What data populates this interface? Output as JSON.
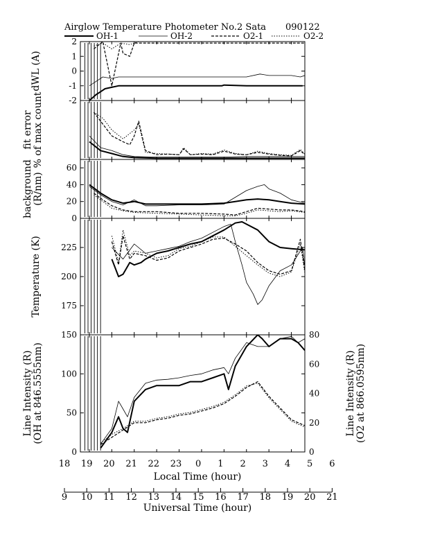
{
  "header": {
    "title": "Airglow Temperature Photometer No.2  Sata",
    "date": "090122"
  },
  "legend": [
    {
      "label": "OH-1",
      "style": "thick"
    },
    {
      "label": "OH-2",
      "style": "thin"
    },
    {
      "label": "O2-1",
      "style": "dash"
    },
    {
      "label": "O2-2",
      "style": "dot"
    }
  ],
  "axes": {
    "local_time_label": "Local Time (hour)",
    "local_time_ticks": [
      "18",
      "19",
      "20",
      "21",
      "22",
      "23",
      "0",
      "1",
      "2",
      "3",
      "4",
      "5",
      "6"
    ],
    "universal_time_label": "Universal Time (hour)",
    "universal_time_ticks": [
      "9",
      "10",
      "11",
      "12",
      "13",
      "14",
      "15",
      "16",
      "17",
      "18",
      "19",
      "20",
      "21"
    ],
    "line_intensity_right_label_1": "Line Intensity (R)",
    "line_intensity_right_label_2": "(O2 at 866.0595nm)"
  },
  "chart_data": [
    {
      "type": "line",
      "panel": "dWL",
      "ylabel": "dWL (A)",
      "ylim": [
        -2,
        2
      ],
      "yticks": [
        "2",
        "1",
        "0",
        "-1",
        "-2"
      ],
      "series": [
        {
          "name": "OH-1",
          "style": "thick",
          "x": [
            19.0,
            19.3,
            19.5,
            19.7,
            20.0,
            20.3,
            21.0,
            22.0,
            23.0,
            0.0,
            0.9,
            1.0,
            2.0,
            3.0,
            4.0,
            4.5
          ],
          "y": [
            -2.0,
            -1.6,
            -1.4,
            -1.2,
            -1.1,
            -1.0,
            -1.0,
            -1.0,
            -1.0,
            -1.0,
            -1.0,
            -0.95,
            -1.0,
            -1.0,
            -1.0,
            -1.0
          ]
        },
        {
          "name": "OH-2",
          "style": "thin",
          "x": [
            19.0,
            19.4,
            19.6,
            20.0,
            20.3,
            21.0,
            22.0,
            23.0,
            0.0,
            1.0,
            2.0,
            2.6,
            3.0,
            4.0,
            4.4,
            4.6
          ],
          "y": [
            -1.0,
            -0.6,
            -0.4,
            -0.5,
            -0.4,
            -0.4,
            -0.4,
            -0.4,
            -0.4,
            -0.4,
            -0.4,
            -0.2,
            -0.3,
            -0.3,
            -0.4,
            -0.3
          ]
        },
        {
          "name": "O2-1",
          "style": "dash",
          "x": [
            19.2,
            19.6,
            20.0,
            20.4,
            20.5,
            20.8,
            21.0,
            21.2,
            22.0,
            23.0,
            0.0,
            1.0,
            2.0,
            3.0,
            4.0,
            4.6
          ],
          "y": [
            1.5,
            2.0,
            -1.0,
            1.9,
            1.2,
            1.0,
            1.9,
            1.9,
            1.9,
            1.9,
            1.9,
            1.9,
            1.9,
            1.9,
            1.9,
            1.9
          ]
        },
        {
          "name": "O2-2",
          "style": "dot",
          "x": [
            19.2,
            19.6,
            20.0,
            20.4,
            20.8,
            21.2,
            22.0,
            23.0,
            0.0,
            1.0,
            2.0,
            3.0,
            4.0,
            4.6
          ],
          "y": [
            1.7,
            1.9,
            1.5,
            1.9,
            1.8,
            2.0,
            2.0,
            2.0,
            2.0,
            2.0,
            2.0,
            2.0,
            2.0,
            2.0
          ]
        }
      ]
    },
    {
      "type": "line",
      "panel": "fit error",
      "ylabel": "fit error",
      "ylabel2": "% of max count",
      "ylim": [
        0,
        10
      ],
      "series": [
        {
          "name": "OH-1",
          "style": "thick",
          "x": [
            19.0,
            19.5,
            20.0,
            20.5,
            21.0,
            22.0,
            23.0,
            0.0,
            1.0,
            2.0,
            3.0,
            4.0,
            4.6
          ],
          "y": [
            3.0,
            1.5,
            1.0,
            0.5,
            0.3,
            0.2,
            0.2,
            0.2,
            0.2,
            0.2,
            0.2,
            0.2,
            0.2
          ]
        },
        {
          "name": "OH-2",
          "style": "thin",
          "x": [
            19.0,
            19.5,
            20.0,
            20.5,
            21.0,
            22.0,
            23.0,
            0.0,
            1.0,
            2.0,
            3.0,
            4.0,
            4.6
          ],
          "y": [
            4.0,
            2.0,
            1.5,
            0.8,
            0.5,
            0.4,
            0.4,
            0.4,
            0.4,
            0.5,
            0.5,
            0.5,
            0.5
          ]
        },
        {
          "name": "O2-1",
          "style": "dash",
          "x": [
            19.2,
            19.6,
            20.0,
            20.5,
            20.8,
            21.0,
            21.2,
            21.5,
            22.0,
            22.5,
            23.0,
            23.2,
            23.5,
            0.0,
            0.5,
            1.0,
            1.5,
            2.0,
            2.5,
            3.0,
            3.5,
            4.0,
            4.4,
            4.6
          ],
          "y": [
            8.0,
            6.0,
            4.0,
            3.0,
            2.5,
            4.0,
            6.5,
            1.5,
            0.8,
            0.9,
            0.8,
            1.8,
            0.8,
            0.9,
            0.8,
            1.4,
            0.9,
            0.8,
            1.2,
            0.9,
            0.7,
            0.6,
            1.5,
            0.8
          ]
        },
        {
          "name": "O2-2",
          "style": "dot",
          "x": [
            19.2,
            19.6,
            20.0,
            20.5,
            21.0,
            21.2,
            21.5,
            22.0,
            22.5,
            23.0,
            23.2,
            23.5,
            0.0,
            0.5,
            1.0,
            1.5,
            2.0,
            2.5,
            3.0,
            3.5,
            4.0,
            4.4,
            4.6
          ],
          "y": [
            8.0,
            7.0,
            5.0,
            3.5,
            5.0,
            6.0,
            1.2,
            1.0,
            0.9,
            0.8,
            2.0,
            0.8,
            1.0,
            0.9,
            1.6,
            1.0,
            0.8,
            1.4,
            1.0,
            0.8,
            0.7,
            1.7,
            0.9
          ]
        }
      ]
    },
    {
      "type": "line",
      "panel": "background",
      "ylabel": "background",
      "ylabel2": "(R/nm)",
      "ylim": [
        0,
        70
      ],
      "yticks": [
        "60",
        "40",
        "20",
        "0"
      ],
      "series": [
        {
          "name": "OH-1",
          "style": "thick",
          "x": [
            19.0,
            19.5,
            20.0,
            20.5,
            21.0,
            21.5,
            22.0,
            23.0,
            0.0,
            1.0,
            1.5,
            2.0,
            2.5,
            3.0,
            3.5,
            4.0,
            4.6
          ],
          "y": [
            40,
            30,
            22,
            18,
            20,
            17,
            17,
            17,
            17,
            18,
            20,
            22,
            23,
            22,
            20,
            18,
            17
          ]
        },
        {
          "name": "OH-2",
          "style": "thin",
          "x": [
            19.0,
            19.5,
            20.0,
            20.5,
            21.0,
            21.5,
            22.0,
            23.0,
            0.0,
            1.0,
            1.5,
            2.0,
            2.5,
            2.8,
            3.0,
            3.5,
            4.0,
            4.6
          ],
          "y": [
            38,
            28,
            20,
            16,
            22,
            15,
            15,
            16,
            16,
            17,
            25,
            33,
            38,
            40,
            35,
            30,
            22,
            18
          ]
        },
        {
          "name": "O2-1",
          "style": "dash",
          "x": [
            19.2,
            19.6,
            20.0,
            20.5,
            21.0,
            22.0,
            23.0,
            0.0,
            1.0,
            1.5,
            2.0,
            2.5,
            3.0,
            3.5,
            4.0,
            4.6
          ],
          "y": [
            30,
            22,
            15,
            10,
            8,
            8,
            6,
            6,
            5,
            4,
            8,
            12,
            11,
            10,
            10,
            8
          ]
        },
        {
          "name": "O2-2",
          "style": "dot",
          "x": [
            19.2,
            19.6,
            20.0,
            20.5,
            21.0,
            22.0,
            23.0,
            0.0,
            1.0,
            1.5,
            2.0,
            2.5,
            3.0,
            3.5,
            4.0,
            4.6
          ],
          "y": [
            28,
            20,
            12,
            9,
            7,
            6,
            5,
            4,
            3,
            3,
            6,
            10,
            9,
            8,
            9,
            7
          ]
        }
      ]
    },
    {
      "type": "line",
      "panel": "Temperature",
      "ylabel": "Temperature (K)",
      "ylim": [
        150,
        250
      ],
      "yticks": [
        "225",
        "200",
        "175"
      ],
      "series": [
        {
          "name": "OH-1",
          "style": "thick",
          "x": [
            20.0,
            20.3,
            20.5,
            20.8,
            21.0,
            21.3,
            21.5,
            22.0,
            22.5,
            23.0,
            23.5,
            0.0,
            0.5,
            1.0,
            1.5,
            1.8,
            2.0,
            2.5,
            3.0,
            3.5,
            4.0,
            4.6
          ],
          "y": [
            215,
            200,
            202,
            212,
            210,
            212,
            215,
            220,
            222,
            225,
            228,
            230,
            235,
            240,
            246,
            247,
            245,
            240,
            230,
            225,
            224,
            223
          ]
        },
        {
          "name": "OH-2",
          "style": "thin",
          "x": [
            20.0,
            20.5,
            21.0,
            21.5,
            22.0,
            22.5,
            23.0,
            23.5,
            0.0,
            0.5,
            1.0,
            1.3,
            1.5,
            1.8,
            2.0,
            2.3,
            2.5,
            2.7,
            3.0,
            3.5,
            4.0,
            4.5,
            4.6
          ],
          "y": [
            225,
            215,
            228,
            220,
            222,
            224,
            226,
            230,
            233,
            238,
            243,
            245,
            230,
            210,
            195,
            185,
            176,
            180,
            192,
            205,
            210,
            225,
            208
          ]
        },
        {
          "name": "O2-1",
          "style": "dash",
          "x": [
            20.0,
            20.3,
            20.5,
            20.8,
            21.0,
            21.5,
            22.0,
            22.5,
            23.0,
            23.5,
            0.0,
            0.5,
            1.0,
            1.5,
            2.0,
            2.5,
            3.0,
            3.5,
            4.0,
            4.4,
            4.6
          ],
          "y": [
            230,
            210,
            235,
            215,
            220,
            218,
            214,
            216,
            222,
            225,
            228,
            232,
            233,
            228,
            222,
            212,
            205,
            202,
            205,
            232,
            205
          ]
        },
        {
          "name": "O2-2",
          "style": "dot",
          "x": [
            20.0,
            20.3,
            20.5,
            20.8,
            21.0,
            21.5,
            22.0,
            22.5,
            23.0,
            23.5,
            0.0,
            0.5,
            1.0,
            1.5,
            2.0,
            2.5,
            3.0,
            3.5,
            4.0,
            4.4,
            4.6
          ],
          "y": [
            235,
            212,
            240,
            218,
            222,
            220,
            216,
            218,
            224,
            226,
            230,
            234,
            234,
            226,
            218,
            210,
            203,
            200,
            204,
            228,
            203
          ]
        }
      ]
    },
    {
      "type": "line",
      "panel": "Line Intensity",
      "ylabel": "Line Intensity (R)",
      "ylabel2": "(OH at 846.5555nm)",
      "ylim": [
        0,
        150
      ],
      "yticks": [
        "150",
        "100",
        "50",
        "0"
      ],
      "y2label": "Line Intensity (R)",
      "y2label2": "(O2 at 866.0595nm)",
      "y2lim": [
        0,
        80
      ],
      "y2ticks": [
        "80",
        "60",
        "40",
        "20",
        "0"
      ],
      "series": [
        {
          "name": "OH-1",
          "style": "thick",
          "axis": "left",
          "x": [
            19.5,
            20.0,
            20.3,
            20.5,
            20.7,
            21.0,
            21.5,
            22.0,
            22.5,
            23.0,
            23.5,
            0.0,
            0.5,
            1.0,
            1.2,
            1.5,
            2.0,
            2.5,
            2.7,
            3.0,
            3.5,
            4.0,
            4.3,
            4.6
          ],
          "y": [
            5,
            25,
            45,
            30,
            25,
            65,
            80,
            85,
            85,
            85,
            90,
            90,
            95,
            100,
            80,
            110,
            135,
            150,
            145,
            135,
            145,
            145,
            140,
            130
          ]
        },
        {
          "name": "OH-2",
          "style": "thin",
          "axis": "left",
          "x": [
            19.5,
            20.0,
            20.3,
            20.5,
            20.7,
            21.0,
            21.5,
            22.0,
            22.5,
            23.0,
            23.5,
            0.0,
            0.5,
            1.0,
            1.2,
            1.5,
            2.0,
            2.5,
            3.0,
            3.5,
            4.0,
            4.3,
            4.6
          ],
          "y": [
            10,
            30,
            65,
            55,
            45,
            70,
            88,
            92,
            93,
            95,
            98,
            100,
            105,
            108,
            100,
            120,
            140,
            135,
            135,
            145,
            148,
            140,
            145
          ]
        },
        {
          "name": "O2-1",
          "style": "dash",
          "axis": "right",
          "x": [
            19.5,
            20.0,
            20.5,
            21.0,
            21.5,
            22.0,
            22.5,
            23.0,
            23.5,
            0.0,
            0.5,
            1.0,
            1.5,
            2.0,
            2.5,
            3.0,
            3.5,
            4.0,
            4.3,
            4.6
          ],
          "y": [
            5,
            10,
            15,
            20,
            20,
            22,
            23,
            25,
            26,
            28,
            30,
            33,
            38,
            44,
            48,
            38,
            30,
            22,
            20,
            18
          ]
        },
        {
          "name": "O2-2",
          "style": "dot",
          "axis": "right",
          "x": [
            19.5,
            20.0,
            20.5,
            21.0,
            21.5,
            22.0,
            22.5,
            23.0,
            23.5,
            0.0,
            0.5,
            1.0,
            1.5,
            2.0,
            2.5,
            3.0,
            3.5,
            4.0,
            4.3,
            4.6
          ],
          "y": [
            6,
            12,
            16,
            21,
            21,
            23,
            24,
            26,
            27,
            29,
            31,
            34,
            39,
            45,
            47,
            37,
            29,
            21,
            19,
            17
          ]
        }
      ]
    }
  ]
}
